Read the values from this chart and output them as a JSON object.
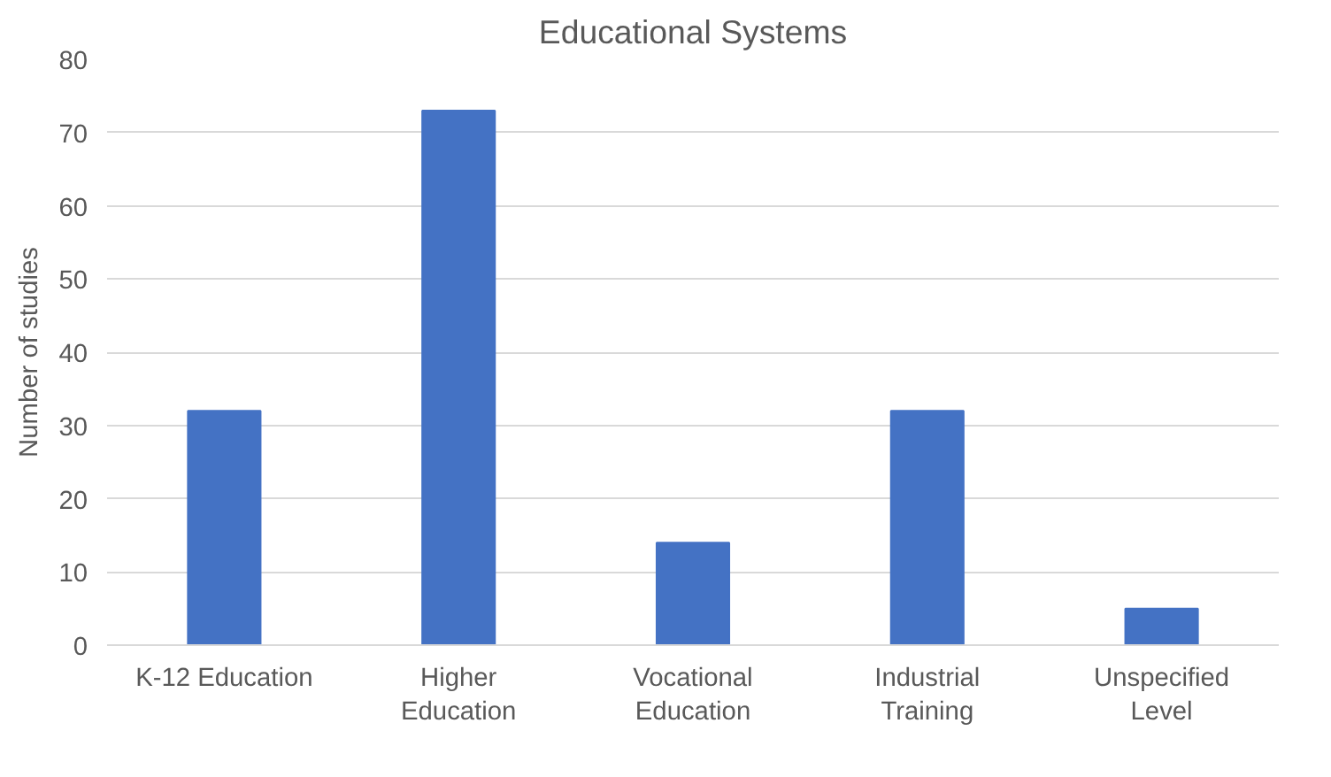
{
  "chart_data": {
    "type": "bar",
    "title": "Educational Systems",
    "ylabel": "Number of studies",
    "categories": [
      "K-12 Education",
      "Higher Education",
      "Vocational Education",
      "Industrial Training",
      "Unspecified Level"
    ],
    "values": [
      32,
      73,
      14,
      32,
      5
    ],
    "color": "#4472c4",
    "ylim": [
      0,
      80
    ],
    "yticks": [
      0,
      10,
      20,
      30,
      40,
      50,
      60,
      70,
      80
    ],
    "grid": "y"
  }
}
